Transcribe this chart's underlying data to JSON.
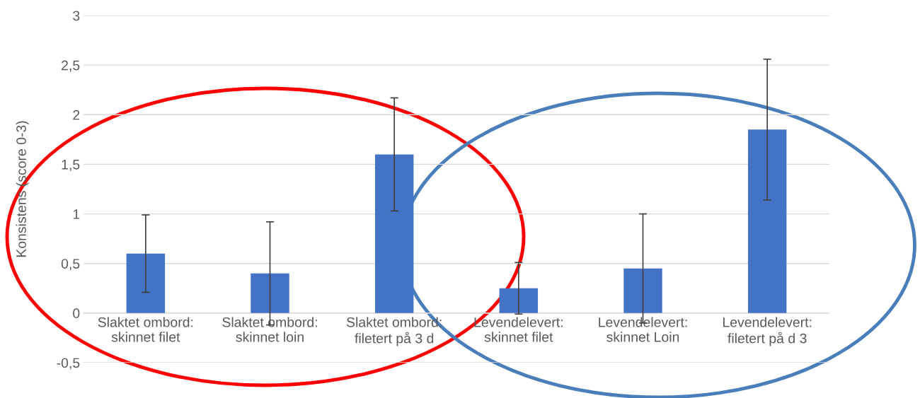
{
  "chart_data": {
    "type": "bar",
    "ylabel": "Konsistens (score 0-3)",
    "categories": [
      "Slaktet ombord: skinnet filet",
      "Slaktet ombord: skinnet loin",
      "Slaktet ombord: filetert på 3 d",
      "Levendelevert: skinnet filet",
      "Levendelevert: skinnet Loin",
      "Levendelevert: filetert på d 3"
    ],
    "values": [
      0.6,
      0.4,
      1.6,
      0.25,
      0.45,
      1.85
    ],
    "errors": [
      [
        0.21,
        0.99
      ],
      [
        -0.12,
        0.92
      ],
      [
        1.03,
        2.17
      ],
      [
        -0.01,
        0.51
      ],
      [
        -0.1,
        1.0
      ],
      [
        1.14,
        2.56
      ]
    ],
    "color": "#4472c4",
    "ylim": [
      -0.5,
      3
    ],
    "yticks": [
      {
        "value": -0.5,
        "label": "-0,5"
      },
      0,
      {
        "value": 0.5,
        "label": "0,5"
      },
      1,
      {
        "value": 1.5,
        "label": "1,5"
      },
      2,
      {
        "value": 2.5,
        "label": "2,5"
      },
      3
    ],
    "grid": "y"
  }
}
